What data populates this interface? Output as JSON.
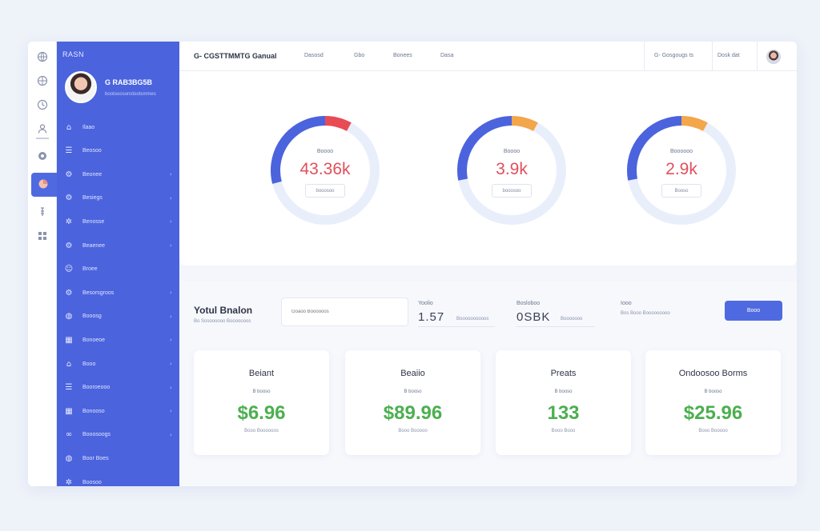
{
  "colors": {
    "accent": "#4b63dd",
    "value_red": "#e0505c",
    "value_green": "#4caf50",
    "segment_red": "#e94b55",
    "segment_orange": "#f3a64a"
  },
  "rail": {
    "icons": [
      "globe-icon",
      "globe-icon",
      "clock-icon",
      "user-icon",
      "dashboard-icon",
      "chart-icon",
      "key-icon",
      "grid-icon"
    ]
  },
  "sidebar": {
    "brand": "RASN",
    "user_name": "G RAB3BG5B",
    "user_sub": "bootooosonstootsmmes",
    "items": [
      {
        "label": "Ilaao",
        "icon": "home-icon",
        "chev": ""
      },
      {
        "label": "Beosoo",
        "icon": "book-icon",
        "chev": ""
      },
      {
        "label": "Beonee",
        "icon": "gear-icon",
        "chev": "›"
      },
      {
        "label": "Besiegs",
        "icon": "gear-icon",
        "chev": "›"
      },
      {
        "label": "Benosse",
        "icon": "settings-icon",
        "chev": "›"
      },
      {
        "label": "Beaenee",
        "icon": "gear-icon",
        "chev": "›"
      },
      {
        "label": "Broee",
        "icon": "user-icon",
        "chev": ""
      },
      {
        "label": "Besorsgroos",
        "icon": "gear-icon",
        "chev": "›"
      },
      {
        "label": "Booosg",
        "icon": "globe-icon",
        "chev": "›"
      },
      {
        "label": "Bonoeoe",
        "icon": "grid-icon",
        "chev": "›"
      },
      {
        "label": "Booo",
        "icon": "home-icon",
        "chev": "›"
      },
      {
        "label": "Booroeooo",
        "icon": "book-icon",
        "chev": "›"
      },
      {
        "label": "Bonooso",
        "icon": "grid-icon",
        "chev": "›"
      },
      {
        "label": "Booosoogs",
        "icon": "link-icon",
        "chev": "›"
      },
      {
        "label": "Boor Boes",
        "icon": "globe-icon",
        "chev": ""
      },
      {
        "label": "Boosoo",
        "icon": "settings-icon",
        "chev": ""
      }
    ]
  },
  "topbar": {
    "title": "G- CGSTTMMTG Ganual",
    "links": [
      "Dasosd",
      "Gbo",
      "Bonees",
      "Dasa"
    ],
    "right_link_1": "G- Gosgougs ts",
    "right_link_2": "Dosk dat"
  },
  "donuts": [
    {
      "label": "Boooo",
      "value": "43.36k",
      "button": "booosoo",
      "segment_color": "#e94b55",
      "fraction": 0.29
    },
    {
      "label": "Boooo",
      "value": "3.9k",
      "button": "booosoo",
      "segment_color": "#f3a64a",
      "fraction": 0.28
    },
    {
      "label": "Boooooo",
      "value": "2.9k",
      "button": "Booso",
      "segment_color": "#f3a64a",
      "fraction": 0.28
    }
  ],
  "summary": {
    "title": "Yotul Bnalon",
    "subtitle": "Bo Sosoooooo Booooooos",
    "input_placeholder": "Goaoo Boooooos",
    "stats": [
      {
        "label": "Yoolio",
        "value": "1.57",
        "unit": "Boooooooooos"
      },
      {
        "label": "Bosloboo",
        "value": "0SBK",
        "unit": "Booooooo"
      }
    ],
    "note_label": "Iooo",
    "note_text": "Bos Booo Booooooooo",
    "button": "Booo"
  },
  "cards": [
    {
      "title": "Beiant",
      "badge": "B booso",
      "value": "$6.96",
      "foot": "Booo Boooooos"
    },
    {
      "title": "Beaiio",
      "badge": "B booso",
      "value": "$89.96",
      "foot": "Booo Booooo"
    },
    {
      "title": "Preats",
      "badge": "B booso",
      "value": "133",
      "foot": "Booo Booo"
    },
    {
      "title": "Ondoosoo Borms",
      "badge": "B booso",
      "value": "$25.96",
      "foot": "Booo Booooo"
    }
  ]
}
